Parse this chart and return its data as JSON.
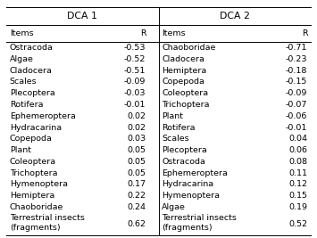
{
  "title_dca1": "DCA 1",
  "title_dca2": "DCA 2",
  "dca1": [
    [
      "Ostracoda",
      "-0.53"
    ],
    [
      "Algae",
      "-0.52"
    ],
    [
      "Cladocera",
      "-0.51"
    ],
    [
      "Scales",
      "-0.09"
    ],
    [
      "Plecoptera",
      "-0.03"
    ],
    [
      "Rotifera",
      "-0.01"
    ],
    [
      "Ephemeroptera",
      "0.02"
    ],
    [
      "Hydracarina",
      "0.02"
    ],
    [
      "Copepoda",
      "0.03"
    ],
    [
      "Plant",
      "0.05"
    ],
    [
      "Coleoptera",
      "0.05"
    ],
    [
      "Trichoptera",
      "0.05"
    ],
    [
      "Hymenoptera",
      "0.17"
    ],
    [
      "Hemiptera",
      "0.22"
    ],
    [
      "Chaoboridae",
      "0.24"
    ],
    [
      "Terrestrial insects\n(fragments)",
      "0.62"
    ]
  ],
  "dca2": [
    [
      "Chaoboridae",
      "-0.71"
    ],
    [
      "Cladocera",
      "-0.23"
    ],
    [
      "Hemiptera",
      "-0.18"
    ],
    [
      "Copepoda",
      "-0.15"
    ],
    [
      "Coleoptera",
      "-0.09"
    ],
    [
      "Trichoptera",
      "-0.07"
    ],
    [
      "Plant",
      "-0.06"
    ],
    [
      "Rotifera",
      "-0.01"
    ],
    [
      "Scales",
      "0.04"
    ],
    [
      "Plecoptera",
      "0.06"
    ],
    [
      "Ostracoda",
      "0.08"
    ],
    [
      "Ephemeroptera",
      "0.11"
    ],
    [
      "Hydracarina",
      "0.12"
    ],
    [
      "Hymenoptera",
      "0.15"
    ],
    [
      "Algae",
      "0.19"
    ],
    [
      "Terrestrial insects\n(fragments)",
      "0.52"
    ]
  ],
  "font_size": 6.8,
  "title_font_size": 7.8,
  "lw": 0.7
}
